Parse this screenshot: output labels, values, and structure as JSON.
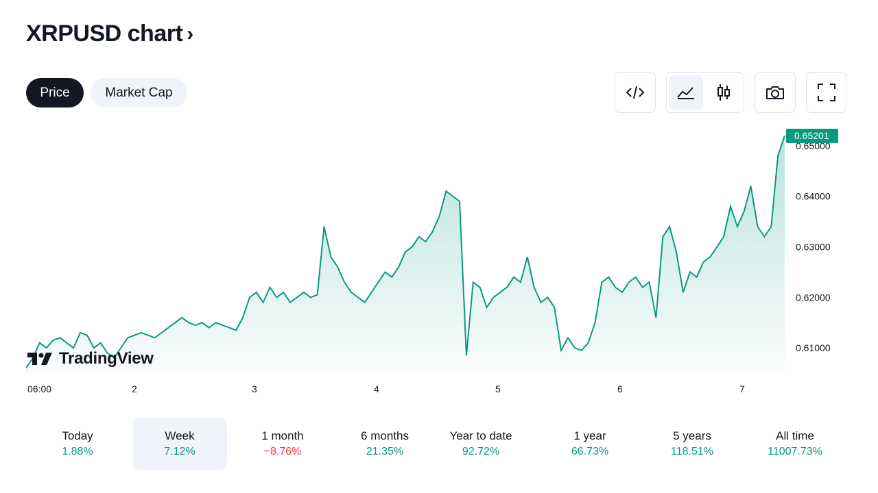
{
  "header": {
    "title": "XRPUSD chart",
    "chevron": "›"
  },
  "tabs": [
    {
      "label": "Price",
      "active": true
    },
    {
      "label": "Market Cap",
      "active": false
    }
  ],
  "toolbar": {
    "embed_icon": "code-icon",
    "area_icon": "area-chart-icon",
    "candle_icon": "candlestick-icon",
    "snapshot_icon": "camera-icon",
    "fullscreen_icon": "fullscreen-icon",
    "active_chart_style": "area"
  },
  "brand": {
    "name": "TradingView"
  },
  "chart_data": {
    "type": "area",
    "x_tick_labels": [
      "06:00",
      "2",
      "3",
      "4",
      "5",
      "6",
      "7"
    ],
    "y_tick_labels": [
      "0.61000",
      "0.62000",
      "0.63000",
      "0.64000",
      "0.65000"
    ],
    "ylim": [
      0.605,
      0.652
    ],
    "last_price": "0.65201",
    "line_color": "#089981",
    "series": [
      {
        "values": [
          0.606,
          0.608,
          0.611,
          0.61,
          0.6115,
          0.612,
          0.611,
          0.61,
          0.613,
          0.6125,
          0.61,
          0.611,
          0.609,
          0.608,
          0.61,
          0.612,
          0.6125,
          0.613,
          0.6125,
          0.612,
          0.613,
          0.614,
          0.615,
          0.616,
          0.615,
          0.6145,
          0.615,
          0.614,
          0.615,
          0.6145,
          0.614,
          0.6135,
          0.616,
          0.62,
          0.621,
          0.619,
          0.622,
          0.62,
          0.621,
          0.619,
          0.62,
          0.621,
          0.62,
          0.6205,
          0.634,
          0.628,
          0.626,
          0.623,
          0.621,
          0.62,
          0.619,
          0.621,
          0.623,
          0.625,
          0.624,
          0.626,
          0.629,
          0.63,
          0.632,
          0.631,
          0.633,
          0.636,
          0.641,
          0.64,
          0.639,
          0.6085,
          0.623,
          0.622,
          0.618,
          0.62,
          0.621,
          0.622,
          0.624,
          0.623,
          0.628,
          0.622,
          0.619,
          0.62,
          0.618,
          0.6095,
          0.612,
          0.61,
          0.6095,
          0.611,
          0.615,
          0.623,
          0.624,
          0.622,
          0.621,
          0.623,
          0.624,
          0.622,
          0.623,
          0.616,
          0.632,
          0.634,
          0.629,
          0.621,
          0.625,
          0.624,
          0.627,
          0.628,
          0.63,
          0.632,
          0.638,
          0.634,
          0.637,
          0.642,
          0.634,
          0.632,
          0.634,
          0.648,
          0.652
        ]
      }
    ]
  },
  "periods": [
    {
      "label": "Today",
      "value": "1.88%",
      "color": "#089981",
      "active": false
    },
    {
      "label": "Week",
      "value": "7.12%",
      "color": "#089981",
      "active": true
    },
    {
      "label": "1 month",
      "value": "−8.76%",
      "color": "#f23645",
      "active": false
    },
    {
      "label": "6 months",
      "value": "21.35%",
      "color": "#089981",
      "active": false
    },
    {
      "label": "Year to date",
      "value": "92.72%",
      "color": "#089981",
      "active": false
    },
    {
      "label": "1 year",
      "value": "66.73%",
      "color": "#089981",
      "active": false
    },
    {
      "label": "5 years",
      "value": "118.51%",
      "color": "#089981",
      "active": false
    },
    {
      "label": "All time",
      "value": "11007.73%",
      "color": "#089981",
      "active": false
    }
  ]
}
